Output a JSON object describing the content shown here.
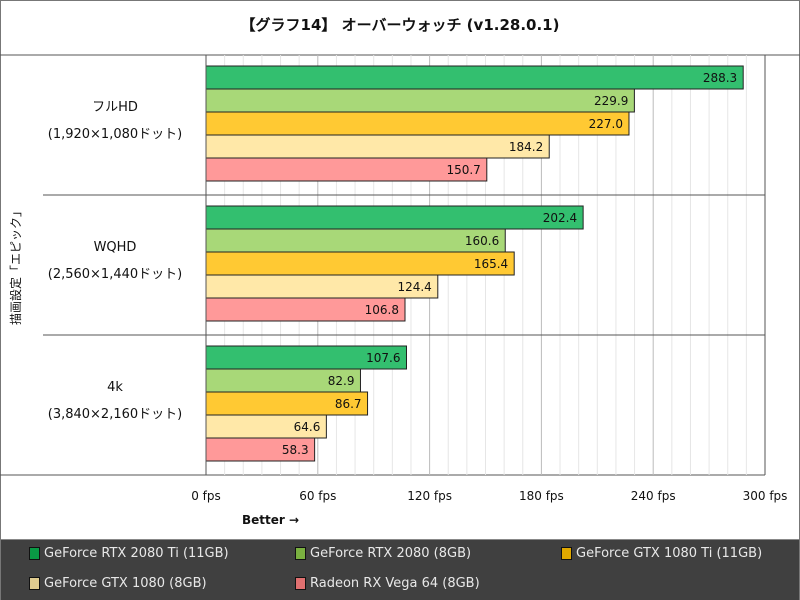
{
  "chart_data": {
    "type": "bar",
    "orientation": "horizontal",
    "title": "【グラフ14】 オーバーウォッチ (v1.28.0.1)",
    "ylabel": "描画設定「エピック」",
    "xlabel": "Better →",
    "categories": [
      {
        "name": "フルHD",
        "sub": "(1,920×1,080ドット)"
      },
      {
        "name": "WQHD",
        "sub": "(2,560×1,440ドット)"
      },
      {
        "name": "4k",
        "sub": "(3,840×2,160ドット)"
      }
    ],
    "xlim": [
      0,
      300
    ],
    "xticks": [
      0,
      60,
      120,
      180,
      240,
      300
    ],
    "xtick_labels": [
      "0 fps",
      "60 fps",
      "120 fps",
      "180 fps",
      "240 fps",
      "300 fps"
    ],
    "grid": true,
    "legend_position": "bottom",
    "series": [
      {
        "name": "GeForce RTX 2080 Ti (11GB)",
        "color": "#33bf6f",
        "legend_color": "#0a9a45",
        "values": [
          288.3,
          202.4,
          107.6
        ]
      },
      {
        "name": "GeForce RTX 2080 (8GB)",
        "color": "#a8d878",
        "legend_color": "#7ab040",
        "values": [
          229.9,
          160.6,
          82.9
        ]
      },
      {
        "name": "GeForce GTX 1080 Ti (11GB)",
        "color": "#ffc933",
        "legend_color": "#e0a800",
        "values": [
          227.0,
          165.4,
          86.7
        ]
      },
      {
        "name": "GeForce GTX 1080 (8GB)",
        "color": "#ffe8a8",
        "legend_color": "#e0cc90",
        "values": [
          184.2,
          124.4,
          64.6
        ]
      },
      {
        "name": "Radeon RX Vega 64 (8GB)",
        "color": "#ff9999",
        "legend_color": "#e07070",
        "values": [
          150.7,
          106.8,
          58.3
        ]
      }
    ]
  }
}
